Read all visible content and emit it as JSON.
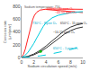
{
  "chart_data": {
    "type": "line",
    "xlabel": "Sodium circulation speed (m/s)",
    "ylabel": "Corrosion rate\n(μm/year)",
    "xlim": [
      0,
      10
    ],
    "ylim": [
      0,
      800
    ],
    "xticks": [
      0,
      2,
      4,
      6,
      8,
      10
    ],
    "yticks": [
      0,
      200,
      400,
      600,
      800
    ],
    "grid": false,
    "series": [
      {
        "color": "#ff2222",
        "line_style": "solid",
        "x": [
          0,
          0.3,
          0.6,
          0.9,
          1.2,
          1.5,
          1.8,
          2.1,
          2.5,
          3.0,
          3.5,
          4.0,
          5.0,
          6.0,
          7.0,
          8.0,
          9.0,
          10.0
        ],
        "values": [
          0,
          50,
          130,
          240,
          370,
          490,
          590,
          660,
          710,
          740,
          752,
          756,
          758,
          757,
          756,
          755,
          754,
          753
        ]
      },
      {
        "color": "#ff2222",
        "line_style": "solid",
        "x": [
          4.0,
          5.0,
          6.0,
          7.0,
          8.0,
          9.0,
          10.0
        ],
        "values": [
          750,
          742,
          734,
          726,
          718,
          710,
          702
        ]
      },
      {
        "color": "#00ccdd",
        "line_style": "solid",
        "x": [
          0,
          0.5,
          1.0,
          1.5,
          2.0,
          2.5,
          3.0,
          3.5,
          4.0,
          5.0,
          6.0,
          7.0,
          8.0,
          9.0,
          10.0
        ],
        "values": [
          0,
          30,
          75,
          140,
          220,
          310,
          400,
          480,
          545,
          620,
          660,
          685,
          700,
          710,
          716
        ]
      },
      {
        "color": "#333333",
        "line_style": "solid",
        "x": [
          0,
          1.0,
          2.0,
          3.0,
          4.0,
          5.0,
          6.0,
          7.0,
          8.0,
          9.0,
          10.0
        ],
        "values": [
          0,
          18,
          55,
          110,
          180,
          260,
          345,
          420,
          475,
          510,
          530
        ]
      },
      {
        "color": "#333333",
        "line_style": "solid",
        "x": [
          0,
          1.0,
          2.0,
          3.0,
          4.0,
          5.0,
          6.0,
          7.0,
          8.0,
          9.0,
          10.0
        ],
        "values": [
          0,
          14,
          42,
          88,
          148,
          218,
          295,
          365,
          420,
          456,
          476
        ]
      },
      {
        "color": "#00ccdd",
        "line_style": "dashed",
        "x": [
          0,
          1.0,
          2.0,
          3.0,
          4.0,
          5.0,
          6.0,
          7.0,
          8.0,
          9.0,
          10.0
        ],
        "values": [
          0,
          5,
          13,
          25,
          40,
          58,
          78,
          100,
          124,
          150,
          178
        ]
      },
      {
        "type": "scatter",
        "marker": "circle",
        "color": "#00bb00",
        "x": [
          3.1
        ],
        "values": [
          95
        ]
      }
    ],
    "annotations": [
      {
        "text": "Sodium temperature: 716",
        "x": 0.2,
        "y": 790,
        "color": "#555555"
      },
      {
        "text": "725°C - 20 ppm O₂",
        "x": 3.8,
        "y": 763,
        "color": "#ff2222"
      },
      {
        "text": "~40-50 ppm O₂",
        "x": 5.2,
        "y": 695,
        "color": "#ff2222"
      },
      {
        "text": "730°C - Ryser D₂",
        "x": 1.5,
        "y": 530,
        "color": "#00aacc"
      },
      {
        "text": "650°C - 15 ppm O₂",
        "x": 6.0,
        "y": 535,
        "color": "#333333"
      },
      {
        "text": "~10-15 ppm O₂",
        "x": 4.8,
        "y": 390,
        "color": "#333333"
      },
      {
        "text": "650°C - 1 ppm O₂",
        "x": 4.8,
        "y": 140,
        "color": "#00aacc"
      }
    ]
  }
}
